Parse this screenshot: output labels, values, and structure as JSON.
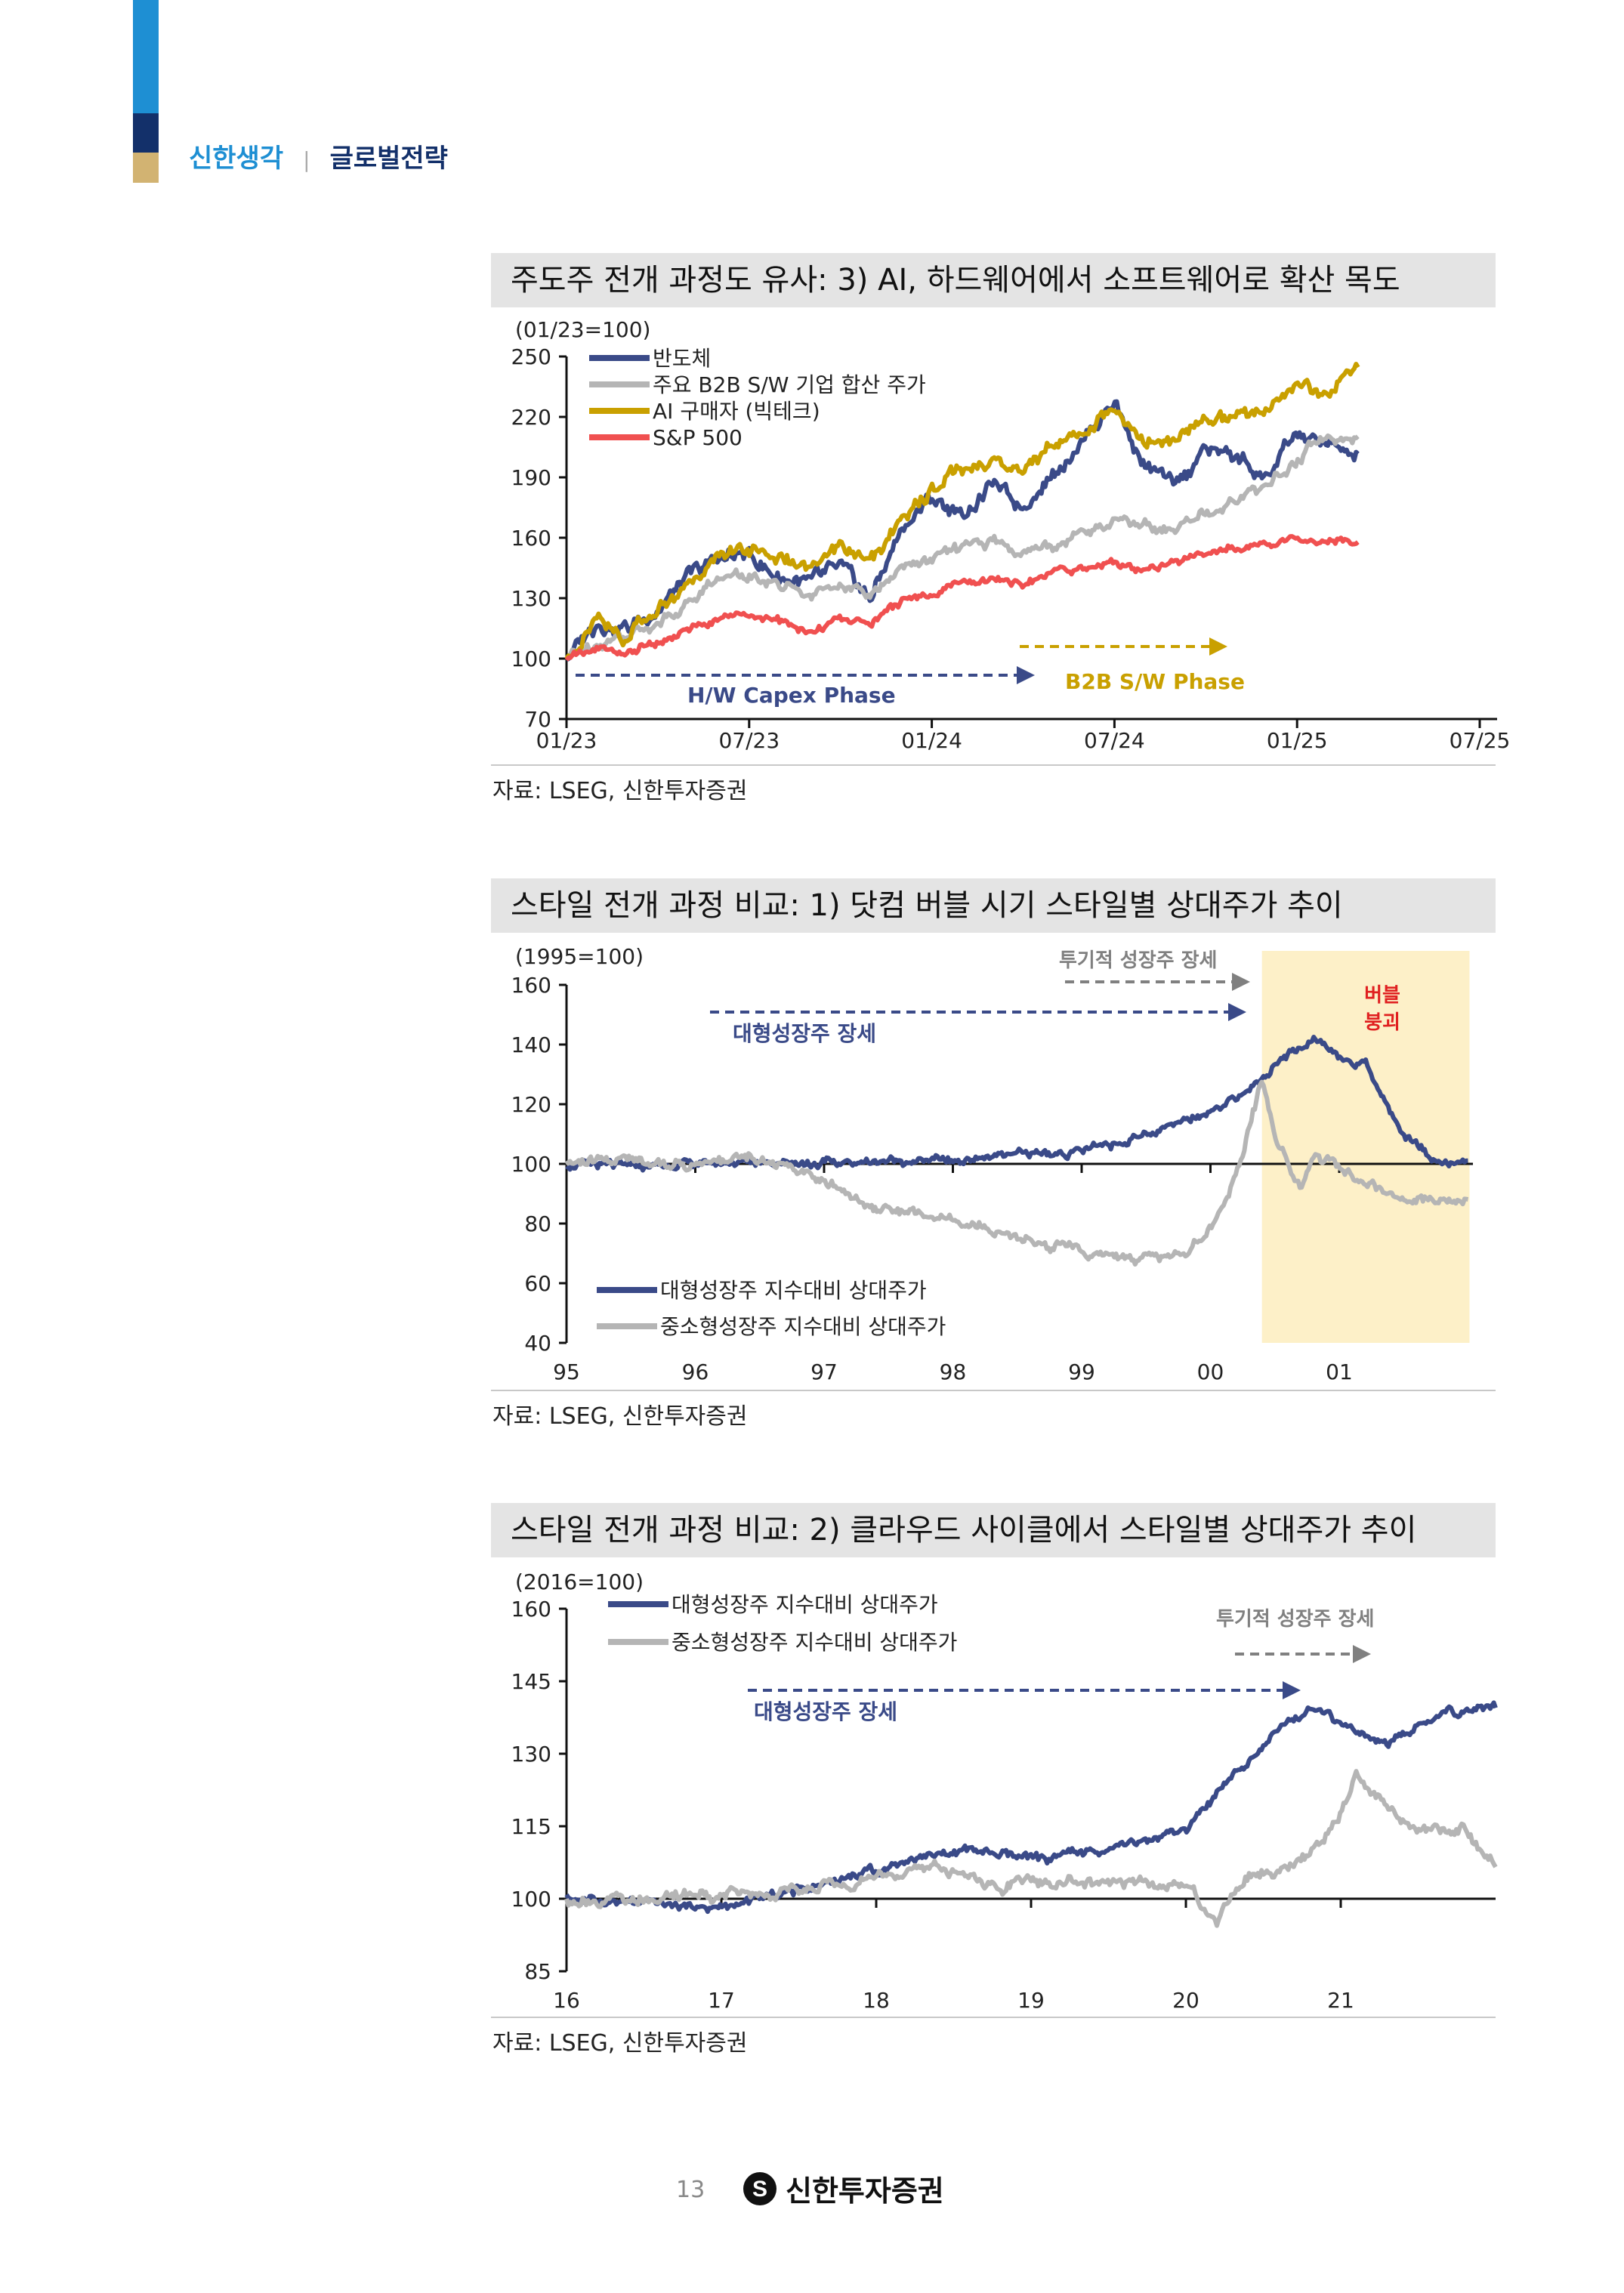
{
  "header": {
    "brand": "신한생각",
    "divider": "|",
    "section": "글로벌전략"
  },
  "colors": {
    "navy": "#3a4a88",
    "gray": "#b5b5b5",
    "gold": "#c9a000",
    "red": "#f05050",
    "bubble": "#fdf0c8",
    "bubble_text": "#e02020"
  },
  "charts": [
    {
      "title": "주도주 전개 과정도 유사: 3) AI, 하드웨어에서 소프트웨어로 확산 목도",
      "source": "자료: LSEG, 신한투자증권",
      "chart_data": {
        "type": "line",
        "unit_label": "(01/23=100)",
        "ylim": [
          70,
          250
        ],
        "yticks": [
          "250",
          "220",
          "190",
          "160",
          "130",
          "100",
          "70"
        ],
        "xticks": [
          "01/23",
          "07/23",
          "01/24",
          "07/24",
          "01/25",
          "07/25"
        ],
        "series": [
          {
            "name": "반도체",
            "color": "#3a4a88",
            "x": [
              0,
              1,
              2,
              3,
              4,
              5,
              6,
              7,
              8,
              9,
              10,
              11,
              12,
              13,
              14,
              15,
              16,
              17,
              18,
              19,
              20,
              21,
              22,
              23,
              24,
              25,
              26
            ],
            "values": [
              100,
              118,
              115,
              125,
              140,
              150,
              152,
              140,
              138,
              145,
              130,
              165,
              180,
              170,
              187,
              175,
              192,
              210,
              228,
              195,
              185,
              205,
              200,
              190,
              212,
              205,
              200
            ]
          },
          {
            "name": "주요 B2B S/W 기업 합산 주가",
            "color": "#b5b5b5",
            "x": [
              0,
              1,
              2,
              3,
              4,
              5,
              6,
              7,
              8,
              9,
              10,
              11,
              12,
              13,
              14,
              15,
              16,
              17,
              18,
              19,
              20,
              21,
              22,
              23,
              24,
              25,
              26
            ],
            "values": [
              100,
              108,
              112,
              118,
              128,
              140,
              143,
              136,
              132,
              138,
              130,
              145,
              150,
              155,
              158,
              153,
              156,
              163,
              168,
              166,
              165,
              172,
              180,
              185,
              200,
              210,
              208
            ]
          },
          {
            "name": "AI 구매자 (빅테크)",
            "color": "#c9a000",
            "x": [
              0,
              1,
              2,
              3,
              4,
              5,
              6,
              7,
              8,
              9,
              10,
              11,
              12,
              13,
              14,
              15,
              16,
              17,
              18,
              19,
              20,
              21,
              22,
              23,
              24,
              25,
              26
            ],
            "values": [
              100,
              120,
              110,
              125,
              135,
              152,
              154,
              150,
              143,
              157,
              148,
              168,
              185,
              195,
              198,
              193,
              205,
              212,
              223,
              205,
              210,
              218,
              220,
              225,
              238,
              232,
              245
            ]
          },
          {
            "name": "S&P 500",
            "color": "#f05050",
            "x": [
              0,
              1,
              2,
              3,
              4,
              5,
              6,
              7,
              8,
              9,
              10,
              11,
              12,
              13,
              14,
              15,
              16,
              17,
              18,
              19,
              20,
              21,
              22,
              23,
              24,
              25,
              26
            ],
            "values": [
              100,
              105,
              103,
              108,
              115,
              120,
              122,
              118,
              113,
              120,
              118,
              128,
              132,
              137,
              140,
              137,
              143,
              145,
              148,
              144,
              148,
              152,
              155,
              157,
              160,
              157,
              158
            ]
          }
        ],
        "annotations": [
          {
            "text": "H/W Capex Phase",
            "color": "#3a4a88"
          },
          {
            "text": "B2B S/W Phase",
            "color": "#c9a000"
          }
        ]
      }
    },
    {
      "title": "스타일 전개 과정 비교: 1) 닷컴 버블 시기 스타일별 상대주가 추이",
      "source": "자료: LSEG, 신한투자증권",
      "chart_data": {
        "type": "line",
        "unit_label": "(1995=100)",
        "ylim": [
          40,
          160
        ],
        "yticks": [
          "160",
          "140",
          "120",
          "100",
          "80",
          "60",
          "40"
        ],
        "xticks": [
          "95",
          "96",
          "97",
          "98",
          "99",
          "00",
          "01"
        ],
        "series": [
          {
            "name": "대형성장주 지수대비 상대주가",
            "color": "#3a4a88",
            "x": [
              0,
              0.5,
              1,
              1.5,
              2,
              2.5,
              3,
              3.5,
              4,
              4.5,
              5,
              5.2,
              5.4,
              5.6,
              5.8,
              6,
              6.2,
              6.5,
              6.8,
              7
            ],
            "values": [
              100,
              99,
              100,
              101,
              100,
              101,
              101,
              103,
              104,
              110,
              118,
              122,
              128,
              136,
              142,
              136,
              133,
              110,
              100,
              101
            ]
          },
          {
            "name": "중소형성장주 지수대비 상대주가",
            "color": "#b5b5b5",
            "x": [
              0,
              0.5,
              1,
              1.4,
              2,
              2.4,
              3,
              3.5,
              3.8,
              4,
              4.4,
              4.8,
              5,
              5.2,
              5.4,
              5.5,
              5.7,
              5.8,
              6,
              6.5,
              7
            ],
            "values": [
              100,
              102,
              99,
              103,
              95,
              85,
              82,
              75,
              72,
              70,
              68,
              70,
              78,
              96,
              128,
              110,
              92,
              103,
              98,
              88,
              88
            ]
          }
        ],
        "annotations": [
          {
            "text": "대형성장주 장세",
            "color": "#3a4a88"
          },
          {
            "text": "투기적 성장주 장세",
            "color": "#808080"
          },
          {
            "text": "버블\n붕괴",
            "color": "#e02020"
          }
        ],
        "shaded_region": {
          "label": "버블 붕괴",
          "x_from": 5.4,
          "x_to": 7
        }
      }
    },
    {
      "title": "스타일 전개 과정 비교: 2) 클라우드 사이클에서 스타일별 상대주가 추이",
      "source": "자료: LSEG, 신한투자증권",
      "chart_data": {
        "type": "line",
        "unit_label": "(2016=100)",
        "ylim": [
          85,
          160
        ],
        "yticks": [
          "160",
          "145",
          "130",
          "115",
          "100",
          "85"
        ],
        "xticks": [
          "16",
          "17",
          "18",
          "19",
          "20",
          "21"
        ],
        "series": [
          {
            "name": "대형성장주 지수대비 상대주가",
            "color": "#3a4a88",
            "x": [
              0,
              0.5,
              1,
              1.5,
              2,
              2.3,
              2.6,
              3,
              3.5,
              4,
              4.3,
              4.6,
              4.8,
              5,
              5.3,
              5.6,
              6
            ],
            "values": [
              100,
              99,
              98,
              102,
              106,
              109,
              110,
              108,
              110,
              114,
              125,
              135,
              140,
              136,
              132,
              138,
              140
            ]
          },
          {
            "name": "중소형성장주 지수대비 상대주가",
            "color": "#b5b5b5",
            "x": [
              0,
              0.5,
              1,
              1.5,
              2,
              2.4,
              2.8,
              3,
              3.5,
              4,
              4.2,
              4.4,
              4.8,
              5,
              5.1,
              5.3,
              5.5,
              5.8,
              6
            ],
            "values": [
              100,
              100,
              101,
              102,
              104,
              107,
              102,
              104,
              103,
              103,
              96,
              105,
              108,
              118,
              125,
              118,
              114,
              115,
              107
            ]
          }
        ],
        "annotations": [
          {
            "text": "대형성장주 장세",
            "color": "#3a4a88"
          },
          {
            "text": "투기적 성장주 장세",
            "color": "#808080"
          }
        ]
      }
    }
  ],
  "footer": {
    "page_number": "13",
    "company": "신한투자증권"
  }
}
